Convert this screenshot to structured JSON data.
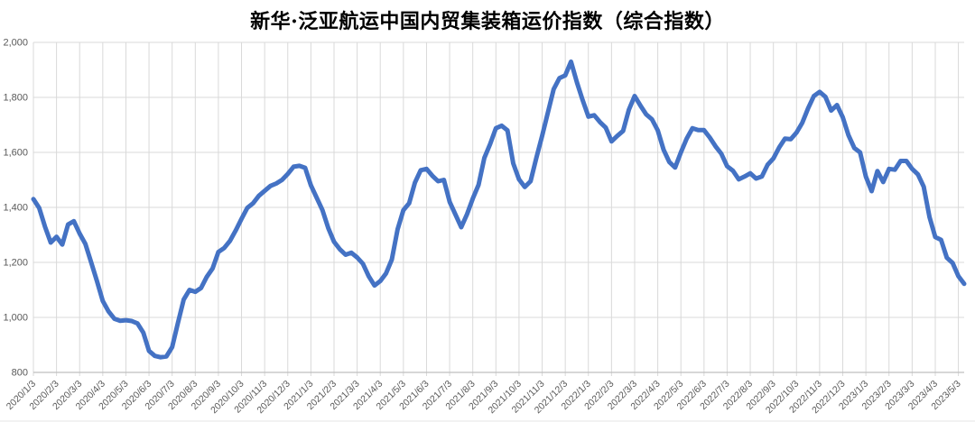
{
  "chart_data": {
    "type": "line",
    "title": "新华·泛亚航运中国内贸集装箱运价指数（综合指数）",
    "xlabel": "",
    "ylabel": "",
    "grid": true,
    "legend": "none",
    "ylim": [
      800,
      2000
    ],
    "y_ticks": [
      800,
      1000,
      1200,
      1400,
      1600,
      1800,
      2000
    ],
    "y_tick_labels": [
      "800",
      "1,000",
      "1,200",
      "1,400",
      "1,600",
      "1,800",
      "2,000"
    ],
    "x_tick_every": 4,
    "x_tick_labels": [
      "2020/1/3",
      "2020/2/3",
      "2020/3/3",
      "2020/4/3",
      "2020/5/3",
      "2020/6/3",
      "2020/7/3",
      "2020/8/3",
      "2020/9/3",
      "2020/10/3",
      "2020/11/3",
      "2020/12/3",
      "2021/1/3",
      "2021/2/3",
      "2021/3/3",
      "2021/4/3",
      "2021/5/3",
      "2021/6/3",
      "2021/7/3",
      "2021/8/3",
      "2021/9/3",
      "2021/10/3",
      "2021/11/3",
      "2021/12/3",
      "2022/1/3",
      "2022/2/3",
      "2022/3/3",
      "2022/4/3",
      "2022/5/3",
      "2022/6/3",
      "2022/7/3",
      "2022/8/3",
      "2022/9/3",
      "2022/10/3",
      "2022/11/3",
      "2022/12/3",
      "2023/1/3",
      "2023/2/3",
      "2023/3/3",
      "2023/4/3",
      "2023/5/3"
    ],
    "x": [
      "2020/1/3",
      "2020/1/10",
      "2020/1/17",
      "2020/1/24",
      "2020/2/3",
      "2020/2/10",
      "2020/2/17",
      "2020/2/24",
      "2020/3/3",
      "2020/3/10",
      "2020/3/17",
      "2020/3/24",
      "2020/4/3",
      "2020/4/10",
      "2020/4/17",
      "2020/4/24",
      "2020/5/3",
      "2020/5/10",
      "2020/5/17",
      "2020/5/24",
      "2020/6/3",
      "2020/6/10",
      "2020/6/17",
      "2020/6/24",
      "2020/7/3",
      "2020/7/10",
      "2020/7/17",
      "2020/7/24",
      "2020/8/3",
      "2020/8/10",
      "2020/8/17",
      "2020/8/24",
      "2020/9/3",
      "2020/9/10",
      "2020/9/17",
      "2020/9/24",
      "2020/10/3",
      "2020/10/10",
      "2020/10/17",
      "2020/10/24",
      "2020/11/3",
      "2020/11/10",
      "2020/11/17",
      "2020/11/24",
      "2020/12/3",
      "2020/12/10",
      "2020/12/17",
      "2020/12/24",
      "2021/1/3",
      "2021/1/10",
      "2021/1/17",
      "2021/1/24",
      "2021/2/3",
      "2021/2/10",
      "2021/2/17",
      "2021/2/24",
      "2021/3/3",
      "2021/3/10",
      "2021/3/17",
      "2021/3/24",
      "2021/4/3",
      "2021/4/10",
      "2021/4/17",
      "2021/4/24",
      "2021/5/3",
      "2021/5/10",
      "2021/5/17",
      "2021/5/24",
      "2021/6/3",
      "2021/6/10",
      "2021/6/17",
      "2021/6/24",
      "2021/7/3",
      "2021/7/10",
      "2021/7/17",
      "2021/7/24",
      "2021/8/3",
      "2021/8/10",
      "2021/8/17",
      "2021/8/24",
      "2021/9/3",
      "2021/9/10",
      "2021/9/17",
      "2021/9/24",
      "2021/10/3",
      "2021/10/10",
      "2021/10/17",
      "2021/10/24",
      "2021/11/3",
      "2021/11/10",
      "2021/11/17",
      "2021/11/24",
      "2021/12/3",
      "2021/12/10",
      "2021/12/17",
      "2021/12/24",
      "2022/1/3",
      "2022/1/10",
      "2022/1/17",
      "2022/1/24",
      "2022/2/3",
      "2022/2/10",
      "2022/2/17",
      "2022/2/24",
      "2022/3/3",
      "2022/3/10",
      "2022/3/17",
      "2022/3/24",
      "2022/4/3",
      "2022/4/10",
      "2022/4/17",
      "2022/4/24",
      "2022/5/3",
      "2022/5/10",
      "2022/5/17",
      "2022/5/24",
      "2022/6/3",
      "2022/6/10",
      "2022/6/17",
      "2022/6/24",
      "2022/7/3",
      "2022/7/10",
      "2022/7/17",
      "2022/7/24",
      "2022/8/3",
      "2022/8/10",
      "2022/8/17",
      "2022/8/24",
      "2022/9/3",
      "2022/9/10",
      "2022/9/17",
      "2022/9/24",
      "2022/10/3",
      "2022/10/10",
      "2022/10/17",
      "2022/10/24",
      "2022/11/3",
      "2022/11/10",
      "2022/11/17",
      "2022/11/24",
      "2022/12/3",
      "2022/12/10",
      "2022/12/17",
      "2022/12/24",
      "2023/1/3",
      "2023/1/10",
      "2023/1/17",
      "2023/1/24",
      "2023/2/3",
      "2023/2/10",
      "2023/2/17",
      "2023/2/24",
      "2023/3/3",
      "2023/3/10",
      "2023/3/17",
      "2023/3/24",
      "2023/4/3",
      "2023/4/10",
      "2023/4/17",
      "2023/4/24",
      "2023/5/3",
      "2023/5/10"
    ],
    "values": [
      1430,
      1398,
      1330,
      1272,
      1293,
      1265,
      1338,
      1350,
      1305,
      1267,
      1200,
      1132,
      1060,
      1022,
      995,
      988,
      990,
      987,
      978,
      945,
      878,
      860,
      855,
      858,
      892,
      980,
      1065,
      1100,
      1093,
      1107,
      1148,
      1178,
      1238,
      1252,
      1278,
      1316,
      1358,
      1398,
      1415,
      1442,
      1460,
      1478,
      1487,
      1500,
      1522,
      1548,
      1551,
      1544,
      1480,
      1435,
      1390,
      1325,
      1275,
      1248,
      1228,
      1235,
      1218,
      1195,
      1150,
      1116,
      1132,
      1160,
      1210,
      1320,
      1390,
      1415,
      1490,
      1535,
      1540,
      1515,
      1495,
      1500,
      1420,
      1374,
      1328,
      1375,
      1432,
      1482,
      1580,
      1630,
      1688,
      1697,
      1680,
      1560,
      1502,
      1474,
      1495,
      1580,
      1660,
      1745,
      1830,
      1870,
      1880,
      1930,
      1855,
      1790,
      1730,
      1735,
      1710,
      1690,
      1640,
      1660,
      1678,
      1755,
      1805,
      1770,
      1738,
      1720,
      1680,
      1610,
      1565,
      1545,
      1600,
      1650,
      1688,
      1681,
      1681,
      1654,
      1622,
      1595,
      1550,
      1533,
      1502,
      1512,
      1524,
      1505,
      1512,
      1555,
      1578,
      1618,
      1650,
      1648,
      1672,
      1708,
      1760,
      1805,
      1820,
      1802,
      1752,
      1772,
      1728,
      1662,
      1616,
      1600,
      1512,
      1459,
      1532,
      1492,
      1540,
      1537,
      1569,
      1569,
      1540,
      1520,
      1475,
      1365,
      1292,
      1282,
      1217,
      1198,
      1150,
      1122
    ],
    "colors": {
      "line": "#4472C4",
      "grid": "#D9D9D9",
      "axis": "#BFBFBF",
      "label": "#595959",
      "title": "#000000"
    }
  }
}
